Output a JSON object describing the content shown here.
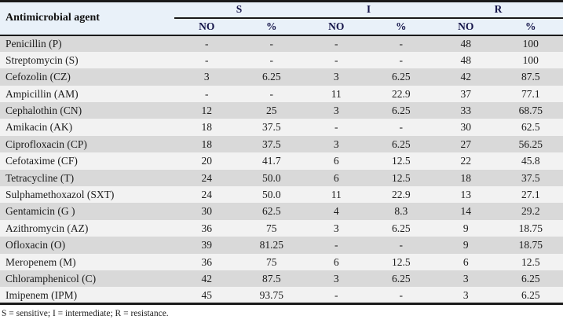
{
  "colors": {
    "header_bg": "#e9f1f9",
    "header_text": "#15154a",
    "row_light": "#f2f2f2",
    "row_dark": "#d9d9d9",
    "border": "#1a1a1a",
    "body_text": "#1c1c1c"
  },
  "table": {
    "agent_header": "Antimicrobial agent",
    "groups": [
      {
        "label": "S"
      },
      {
        "label": "I"
      },
      {
        "label": "R"
      }
    ],
    "sub_headers": {
      "no": "NO",
      "pct": "%"
    },
    "rows": [
      {
        "agent": "Penicillin (P)",
        "s_no": "-",
        "s_pct": "-",
        "i_no": "-",
        "i_pct": "-",
        "r_no": "48",
        "r_pct": "100"
      },
      {
        "agent": "Streptomycin (S)",
        "s_no": "-",
        "s_pct": "-",
        "i_no": "-",
        "i_pct": "-",
        "r_no": "48",
        "r_pct": "100"
      },
      {
        "agent": "Cefozolin (CZ)",
        "s_no": "3",
        "s_pct": "6.25",
        "i_no": "3",
        "i_pct": "6.25",
        "r_no": "42",
        "r_pct": "87.5"
      },
      {
        "agent": "Ampicillin (AM)",
        "s_no": "-",
        "s_pct": "-",
        "i_no": "11",
        "i_pct": "22.9",
        "r_no": "37",
        "r_pct": "77.1"
      },
      {
        "agent": "Cephalothin (CN)",
        "s_no": "12",
        "s_pct": "25",
        "i_no": "3",
        "i_pct": "6.25",
        "r_no": "33",
        "r_pct": "68.75"
      },
      {
        "agent": "Amikacin (AK)",
        "s_no": "18",
        "s_pct": "37.5",
        "i_no": "-",
        "i_pct": "-",
        "r_no": "30",
        "r_pct": "62.5"
      },
      {
        "agent": "Ciprofloxacin (CP)",
        "s_no": "18",
        "s_pct": "37.5",
        "i_no": "3",
        "i_pct": "6.25",
        "r_no": "27",
        "r_pct": "56.25"
      },
      {
        "agent": "Cefotaxime (CF)",
        "s_no": "20",
        "s_pct": "41.7",
        "i_no": "6",
        "i_pct": "12.5",
        "r_no": "22",
        "r_pct": "45.8"
      },
      {
        "agent": "Tetracycline (T)",
        "s_no": "24",
        "s_pct": "50.0",
        "i_no": "6",
        "i_pct": "12.5",
        "r_no": "18",
        "r_pct": "37.5"
      },
      {
        "agent": "Sulphamethoxazol (SXT)",
        "s_no": "24",
        "s_pct": "50.0",
        "i_no": "11",
        "i_pct": "22.9",
        "r_no": "13",
        "r_pct": "27.1"
      },
      {
        "agent": "Gentamicin (G )",
        "s_no": "30",
        "s_pct": "62.5",
        "i_no": "4",
        "i_pct": "8.3",
        "r_no": "14",
        "r_pct": "29.2"
      },
      {
        "agent": "Azithromycin (AZ)",
        "s_no": "36",
        "s_pct": "75",
        "i_no": "3",
        "i_pct": "6.25",
        "r_no": "9",
        "r_pct": "18.75"
      },
      {
        "agent": "Ofloxacin (O)",
        "s_no": "39",
        "s_pct": "81.25",
        "i_no": "-",
        "i_pct": "-",
        "r_no": "9",
        "r_pct": "18.75"
      },
      {
        "agent": "Meropenem (M)",
        "s_no": "36",
        "s_pct": "75",
        "i_no": "6",
        "i_pct": "12.5",
        "r_no": "6",
        "r_pct": "12.5"
      },
      {
        "agent": "Chloramphenicol (C)",
        "s_no": "42",
        "s_pct": "87.5",
        "i_no": "3",
        "i_pct": "6.25",
        "r_no": "3",
        "r_pct": "6.25"
      },
      {
        "agent": "Imipenem (IPM)",
        "s_no": "45",
        "s_pct": "93.75",
        "i_no": "-",
        "i_pct": "-",
        "r_no": "3",
        "r_pct": "6.25"
      }
    ],
    "footnote": "S = sensitive; I = intermediate; R = resistance."
  }
}
